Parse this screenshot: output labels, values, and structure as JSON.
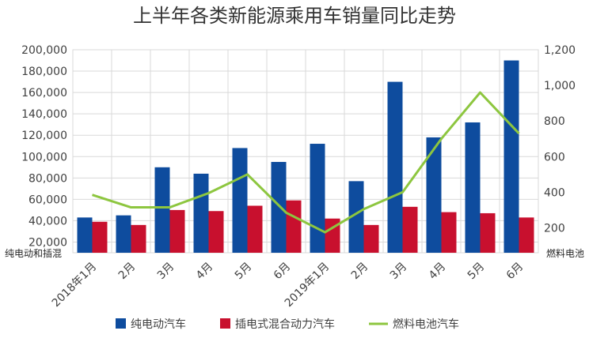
{
  "chart_data": {
    "type": "bar",
    "title": "上半年各类新能源乘用车销量同比走势",
    "categories": [
      "2018年1月",
      "2月",
      "3月",
      "4月",
      "5月",
      "6月",
      "2019年1月",
      "2月",
      "3月",
      "4月",
      "5月",
      "6月"
    ],
    "series": [
      {
        "name": "纯电动汽车",
        "type": "bar",
        "axis": "left",
        "color": "#0E4C9E",
        "values": [
          43000,
          45000,
          90000,
          84000,
          108000,
          95000,
          112000,
          77000,
          170000,
          118000,
          132000,
          190000
        ]
      },
      {
        "name": "插电式混合动力汽车",
        "type": "bar",
        "axis": "left",
        "color": "#C8102E",
        "values": [
          39000,
          36000,
          50000,
          49000,
          54000,
          59000,
          42000,
          36000,
          53000,
          48000,
          47000,
          43000
        ]
      },
      {
        "name": "燃料电池汽车",
        "type": "line",
        "axis": "right",
        "color": "#8DC63F",
        "values": [
          385,
          315,
          315,
          395,
          500,
          285,
          175,
          305,
          400,
          700,
          960,
          730
        ]
      }
    ],
    "ylabel_left": "纯电动和插混",
    "ylabel_right": "燃料电池",
    "ylim_left": [
      10000,
      200000
    ],
    "ylim_right": [
      60,
      1200
    ],
    "yticks_left": [
      "20,000",
      "40,000",
      "60,000",
      "80,000",
      "100,000",
      "120,000",
      "140,000",
      "160,000",
      "180,000",
      "200,000"
    ],
    "yticks_right": [
      "200",
      "400",
      "600",
      "800",
      "1,000",
      "1,200"
    ],
    "grid": true,
    "legend_position": "bottom"
  }
}
